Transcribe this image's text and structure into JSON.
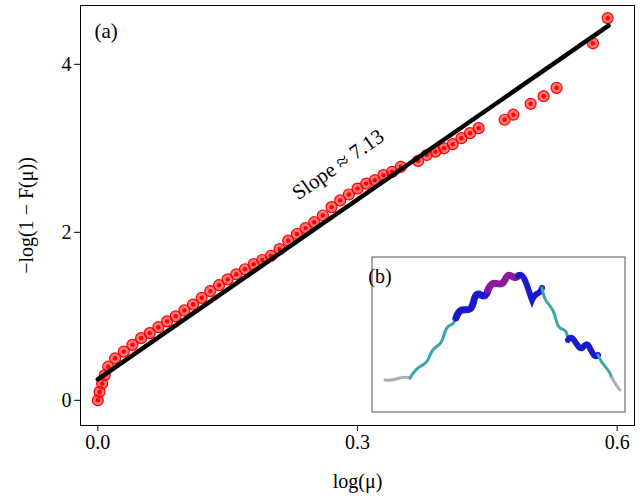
{
  "chart_data": {
    "type": "scatter",
    "x_label": "log(μ)",
    "y_label": "−log(1 − F(μ))",
    "panel_labels": [
      "(a)",
      "(b)"
    ],
    "annotations": [
      "Slope ≈ 7.13"
    ],
    "color": "#ff0000",
    "marker": "circle",
    "x": [
      0.0,
      0.002,
      0.005,
      0.008,
      0.012,
      0.02,
      0.03,
      0.04,
      0.05,
      0.06,
      0.07,
      0.08,
      0.09,
      0.1,
      0.11,
      0.12,
      0.13,
      0.14,
      0.15,
      0.16,
      0.17,
      0.18,
      0.19,
      0.2,
      0.21,
      0.22,
      0.23,
      0.24,
      0.25,
      0.26,
      0.27,
      0.28,
      0.29,
      0.3,
      0.31,
      0.32,
      0.33,
      0.34,
      0.35,
      0.37,
      0.38,
      0.39,
      0.4,
      0.41,
      0.42,
      0.43,
      0.44,
      0.47,
      0.48,
      0.5,
      0.515,
      0.53,
      0.572,
      0.589
    ],
    "values": [
      0.0,
      0.1,
      0.2,
      0.3,
      0.4,
      0.5,
      0.58,
      0.66,
      0.74,
      0.8,
      0.87,
      0.94,
      1.0,
      1.07,
      1.14,
      1.22,
      1.3,
      1.37,
      1.44,
      1.5,
      1.56,
      1.62,
      1.67,
      1.72,
      1.8,
      1.9,
      1.98,
      2.05,
      2.12,
      2.2,
      2.3,
      2.38,
      2.45,
      2.52,
      2.58,
      2.62,
      2.68,
      2.72,
      2.78,
      2.85,
      2.92,
      2.96,
      3.0,
      3.05,
      3.12,
      3.18,
      3.24,
      3.34,
      3.4,
      3.53,
      3.62,
      3.72,
      4.25,
      4.55
    ],
    "fit": {
      "x": [
        0.0,
        0.59
      ],
      "y": [
        0.25,
        4.46
      ],
      "color": "#000000"
    },
    "xlim": [
      -0.02,
      0.62
    ],
    "ylim": [
      -0.3,
      4.7
    ],
    "xticks": [
      {
        "value": 0,
        "label": "0.0"
      },
      0.3,
      0.6
    ],
    "yticks": [
      0,
      2,
      4
    ],
    "grid": false
  }
}
